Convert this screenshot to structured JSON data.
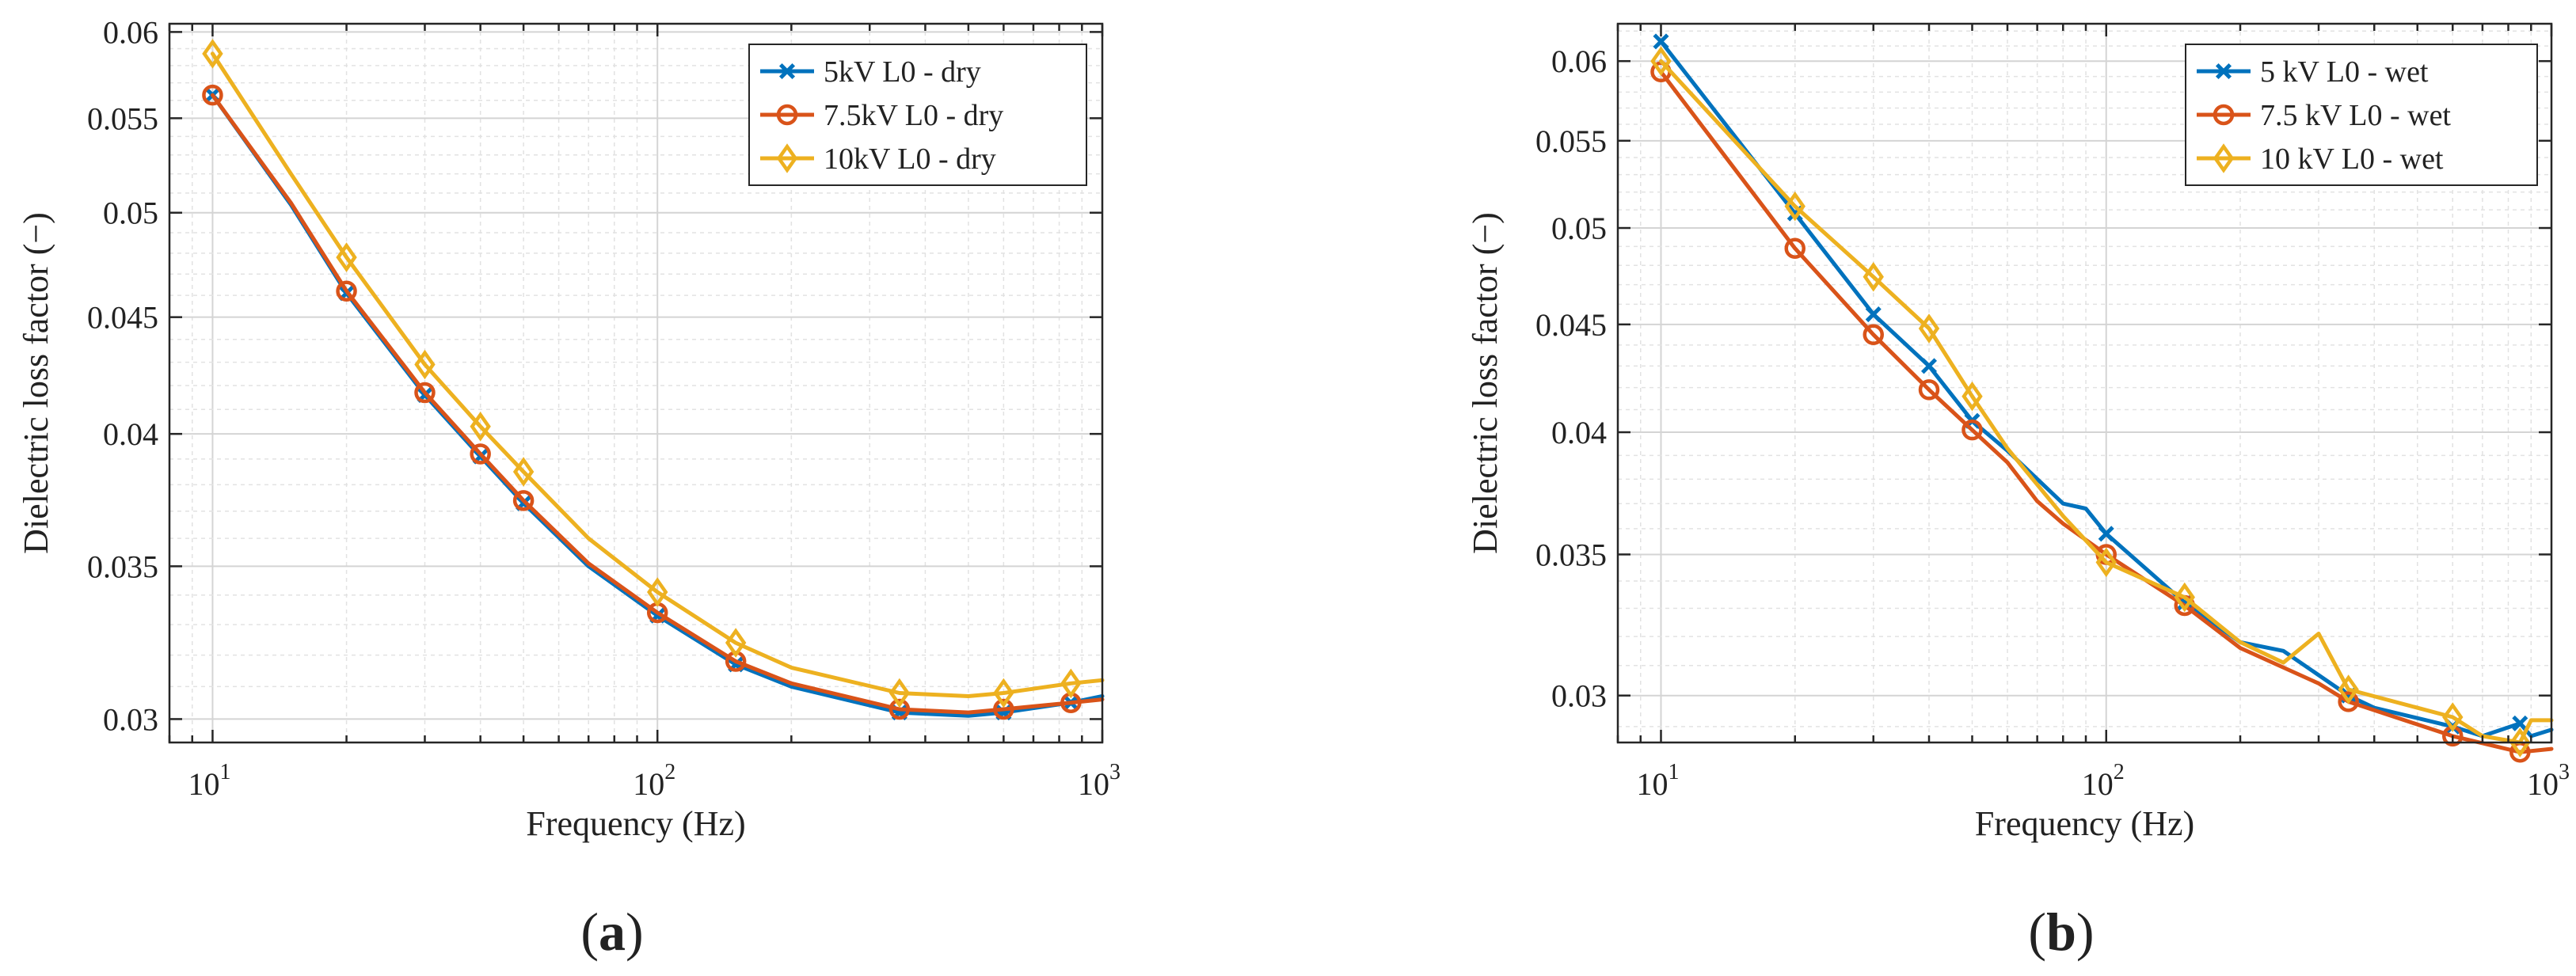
{
  "chart_data": [
    {
      "type": "line",
      "panel_label": "(a)",
      "xscale": "log",
      "yscale": "log",
      "xlim": [
        8,
        1000
      ],
      "ylim": [
        0.0293,
        0.0605
      ],
      "xlabel": "Frequency (Hz)",
      "ylabel": "Dielectric loss factor (−)",
      "xticks": [
        10,
        100,
        1000
      ],
      "xtick_labels": [
        {
          "base": "10",
          "exp": "1"
        },
        {
          "base": "10",
          "exp": "2"
        },
        {
          "base": "10",
          "exp": "3"
        }
      ],
      "yticks": [
        0.03,
        0.035,
        0.04,
        0.045,
        0.05,
        0.055,
        0.06
      ],
      "ytick_labels": [
        "0.03",
        "0.035",
        "0.04",
        "0.045",
        "0.05",
        "0.055",
        "0.06"
      ],
      "grid": true,
      "legend_position": "top-right",
      "series": [
        {
          "name": "5kV L0 - dry",
          "color": "#0072BD",
          "marker": "x",
          "x": [
            10,
            15,
            20,
            30,
            40,
            50,
            70,
            100,
            150,
            200,
            350,
            500,
            600,
            850,
            1000
          ],
          "y": [
            0.0563,
            0.0504,
            0.0461,
            0.0416,
            0.0391,
            0.0373,
            0.035,
            0.0333,
            0.0317,
            0.031,
            0.0302,
            0.0301,
            0.0302,
            0.0305,
            0.0307
          ],
          "marker_x": [
            10,
            20,
            30,
            40,
            50,
            100,
            150,
            350,
            600,
            850
          ],
          "marker_y": [
            0.0563,
            0.0461,
            0.0416,
            0.0391,
            0.0373,
            0.0333,
            0.0317,
            0.0302,
            0.0302,
            0.0305
          ]
        },
        {
          "name": "7.5kV L0 - dry",
          "color": "#D95319",
          "marker": "o",
          "x": [
            10,
            15,
            20,
            30,
            40,
            50,
            70,
            100,
            150,
            200,
            350,
            500,
            600,
            850,
            1000
          ],
          "y": [
            0.0563,
            0.0505,
            0.0462,
            0.0417,
            0.0392,
            0.0374,
            0.0351,
            0.0334,
            0.0318,
            0.0311,
            0.0303,
            0.0302,
            0.0303,
            0.0305,
            0.0306
          ],
          "marker_x": [
            10,
            20,
            30,
            40,
            50,
            100,
            150,
            350,
            600,
            850
          ],
          "marker_y": [
            0.0563,
            0.0462,
            0.0417,
            0.0392,
            0.0374,
            0.0334,
            0.0318,
            0.0303,
            0.0303,
            0.0305
          ]
        },
        {
          "name": "10kV L0 - dry",
          "color": "#EDB120",
          "marker": "d",
          "x": [
            10,
            15,
            20,
            30,
            40,
            50,
            70,
            100,
            150,
            200,
            350,
            500,
            600,
            850,
            1000
          ],
          "y": [
            0.0587,
            0.052,
            0.0478,
            0.0429,
            0.0403,
            0.0385,
            0.036,
            0.0341,
            0.0324,
            0.0316,
            0.0308,
            0.0307,
            0.0308,
            0.0311,
            0.0312
          ],
          "marker_x": [
            10,
            20,
            30,
            40,
            50,
            100,
            150,
            350,
            600,
            850
          ],
          "marker_y": [
            0.0587,
            0.0478,
            0.0429,
            0.0403,
            0.0385,
            0.0341,
            0.0324,
            0.0308,
            0.0308,
            0.0311
          ]
        }
      ]
    },
    {
      "type": "line",
      "panel_label": "(b)",
      "xscale": "log",
      "yscale": "log",
      "xlim": [
        8,
        1000
      ],
      "ylim": [
        0.0285,
        0.0625
      ],
      "xlabel": "Frequency (Hz)",
      "ylabel": "Dielectric loss factor (−)",
      "xticks": [
        10,
        100,
        1000
      ],
      "xtick_labels": [
        {
          "base": "10",
          "exp": "1"
        },
        {
          "base": "10",
          "exp": "2"
        },
        {
          "base": "10",
          "exp": "3"
        }
      ],
      "yticks": [
        0.03,
        0.035,
        0.04,
        0.045,
        0.05,
        0.055,
        0.06
      ],
      "ytick_labels": [
        "0.03",
        "0.035",
        "0.04",
        "0.045",
        "0.05",
        "0.055",
        "0.06"
      ],
      "grid": true,
      "legend_position": "top-right",
      "series": [
        {
          "name": "5 kV L0 - wet",
          "color": "#0072BD",
          "marker": "x",
          "x": [
            10,
            20,
            30,
            40,
            50,
            60,
            80,
            90,
            100,
            150,
            200,
            250,
            350,
            400,
            600,
            700,
            850,
            900,
            1000
          ],
          "y": [
            0.0613,
            0.0508,
            0.0455,
            0.043,
            0.0405,
            0.0392,
            0.037,
            0.0368,
            0.0358,
            0.0332,
            0.0318,
            0.0315,
            0.03,
            0.0296,
            0.029,
            0.0287,
            0.0291,
            0.0287,
            0.0289
          ],
          "marker_x": [
            10,
            20,
            30,
            40,
            50,
            100,
            150,
            350,
            600,
            850
          ],
          "marker_y": [
            0.0613,
            0.0508,
            0.0455,
            0.043,
            0.0405,
            0.0358,
            0.0332,
            0.03,
            0.029,
            0.0291
          ]
        },
        {
          "name": "7.5 kV L0 - wet",
          "color": "#D95319",
          "marker": "o",
          "x": [
            10,
            20,
            30,
            40,
            50,
            60,
            70,
            80,
            100,
            150,
            200,
            300,
            350,
            600,
            850,
            1000
          ],
          "y": [
            0.0593,
            0.0489,
            0.0445,
            0.0419,
            0.0401,
            0.0387,
            0.0371,
            0.0362,
            0.035,
            0.0331,
            0.0316,
            0.0304,
            0.0298,
            0.0287,
            0.0282,
            0.0283
          ],
          "marker_x": [
            10,
            20,
            30,
            40,
            50,
            100,
            150,
            350,
            600,
            850
          ],
          "marker_y": [
            0.0593,
            0.0489,
            0.0445,
            0.0419,
            0.0401,
            0.035,
            0.0331,
            0.0298,
            0.0287,
            0.0282
          ]
        },
        {
          "name": "10 kV L0 - wet",
          "color": "#EDB120",
          "marker": "d",
          "x": [
            10,
            20,
            30,
            40,
            50,
            60,
            80,
            100,
            150,
            200,
            250,
            300,
            350,
            600,
            700,
            850,
            900,
            1000
          ],
          "y": [
            0.06,
            0.0512,
            0.0474,
            0.0448,
            0.0416,
            0.0393,
            0.0365,
            0.0347,
            0.0334,
            0.0318,
            0.0311,
            0.0321,
            0.0302,
            0.0293,
            0.0287,
            0.0285,
            0.0292,
            0.0292
          ],
          "marker_x": [
            10,
            20,
            30,
            40,
            50,
            100,
            150,
            350,
            600,
            850
          ],
          "marker_y": [
            0.06,
            0.0512,
            0.0474,
            0.0448,
            0.0416,
            0.0347,
            0.0334,
            0.0302,
            0.0293,
            0.0285
          ]
        }
      ]
    }
  ]
}
